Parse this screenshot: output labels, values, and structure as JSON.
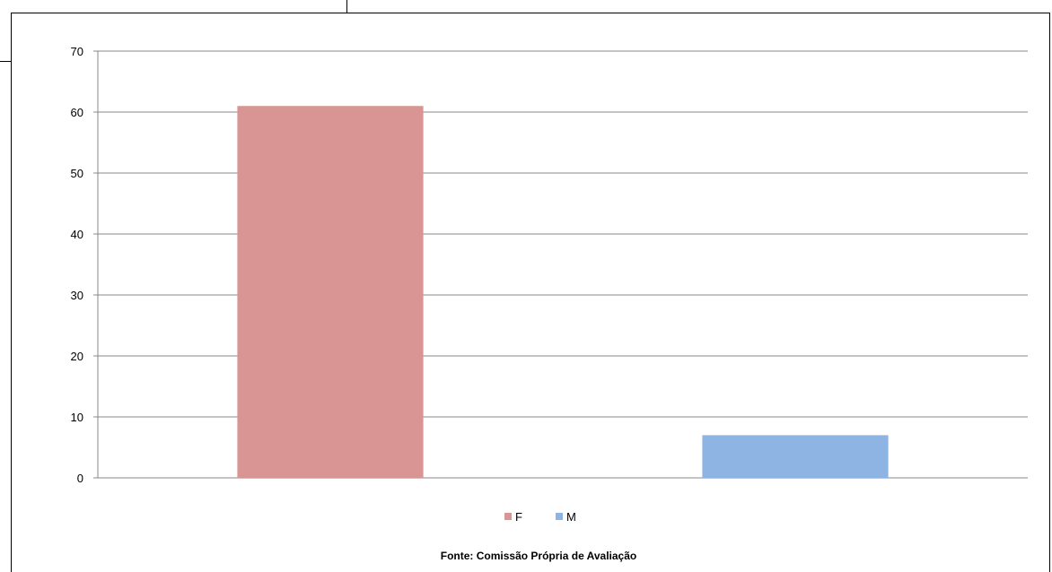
{
  "chart_data": {
    "type": "bar",
    "categories": [
      "F",
      "M"
    ],
    "values": [
      61,
      7
    ],
    "colors": [
      "#d99594",
      "#8eb4e3"
    ],
    "ylim": [
      0,
      70
    ],
    "y_ticks": [
      "0",
      "10",
      "20",
      "30",
      "40",
      "50",
      "60",
      "70"
    ],
    "grid": true,
    "legend": {
      "position": "bottom",
      "entries": [
        "F",
        "M"
      ]
    },
    "title": "",
    "xlabel": "",
    "ylabel": ""
  },
  "source_note": "Fonte: Comissão Própria de Avaliação"
}
